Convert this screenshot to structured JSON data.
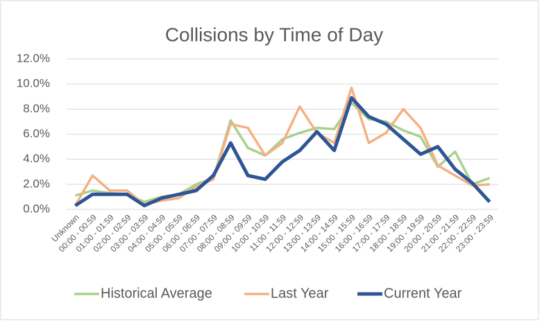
{
  "chart_data": {
    "type": "line",
    "title": "Collisions by Time of Day",
    "categories": [
      "Unknown",
      "00:00 - 00:59",
      "01:00 - 01:59",
      "02:00 - 02:59",
      "03:00 - 03:59",
      "04:00 - 04:59",
      "05:00 - 05:59",
      "06:00 - 06:59",
      "07:00 - 07:59",
      "08:00 - 08:59",
      "09:00 - 09:59",
      "10:00 - 10:59",
      "11:00 - 11:59",
      "12:00 - 12:59",
      "13:00 - 13:59",
      "14:00 - 14:59",
      "15:00 - 15:59",
      "16:00 - 16:59",
      "17:00 - 17:59",
      "18:00 - 18:59",
      "19:00 - 19:59",
      "20:00 - 20:59",
      "21:00 - 21:59",
      "22:00 - 22:59",
      "23:00 - 23:59"
    ],
    "series": [
      {
        "name": "Historical Average",
        "color": "#a9d18e",
        "values": [
          1.1,
          1.5,
          1.3,
          1.2,
          0.6,
          1.0,
          1.2,
          2.0,
          2.5,
          7.1,
          4.9,
          4.3,
          5.6,
          6.1,
          6.5,
          6.4,
          8.5,
          7.2,
          7.0,
          6.3,
          5.8,
          3.4,
          4.6,
          2.0,
          2.5
        ]
      },
      {
        "name": "Last Year",
        "color": "#f4b183",
        "values": [
          0.3,
          2.7,
          1.5,
          1.5,
          0.4,
          0.7,
          0.9,
          1.8,
          2.4,
          6.8,
          6.5,
          4.3,
          5.3,
          8.2,
          6.1,
          5.3,
          9.7,
          5.3,
          6.1,
          8.0,
          6.5,
          3.5,
          2.7,
          1.9,
          2.0
        ]
      },
      {
        "name": "Current Year",
        "color": "#2f5597",
        "values": [
          0.3,
          1.2,
          1.2,
          1.2,
          0.3,
          0.9,
          1.2,
          1.5,
          2.7,
          5.3,
          2.7,
          2.4,
          3.8,
          4.7,
          6.2,
          4.7,
          8.9,
          7.4,
          6.8,
          5.6,
          4.4,
          5.0,
          3.2,
          2.1,
          0.6
        ]
      }
    ],
    "ylim": [
      0,
      12
    ],
    "yticks": [
      {
        "value": 0,
        "label": "0.0%"
      },
      {
        "value": 2,
        "label": "2.0%"
      },
      {
        "value": 4,
        "label": "4.0%"
      },
      {
        "value": 6,
        "label": "6.0%"
      },
      {
        "value": 8,
        "label": "8.0%"
      },
      {
        "value": 10,
        "label": "10.0%"
      },
      {
        "value": 12,
        "label": "12.0%"
      }
    ],
    "grid": true,
    "legend": "bottom"
  }
}
